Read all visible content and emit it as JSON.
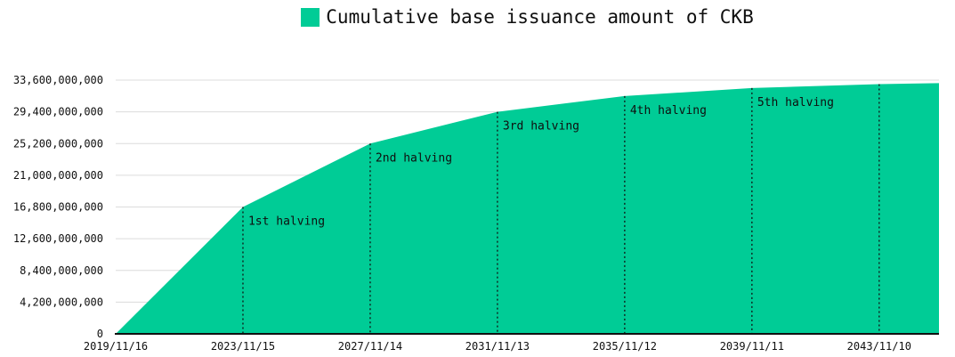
{
  "legend": {
    "label": "Cumulative base issuance amount of CKB",
    "swatch_color": "#00cc96"
  },
  "chart_data": {
    "type": "area",
    "title": "Cumulative base issuance amount of CKB",
    "grid": true,
    "legend_position": "top-center",
    "series": [
      {
        "name": "Cumulative base issuance amount of CKB",
        "color": "#00cc96",
        "points": [
          {
            "x": 0,
            "y": 0
          },
          {
            "x": 1,
            "y": 16800000000
          },
          {
            "x": 2,
            "y": 25200000000
          },
          {
            "x": 3,
            "y": 29400000000
          },
          {
            "x": 4,
            "y": 31500000000
          },
          {
            "x": 5,
            "y": 32550000000
          },
          {
            "x": 6,
            "y": 33075000000
          },
          {
            "x": 6.47,
            "y": 33198000000
          }
        ]
      }
    ],
    "x_axis": {
      "tick_labels": [
        "2019/11/16",
        "2023/11/15",
        "2027/11/14",
        "2031/11/13",
        "2035/11/12",
        "2039/11/11",
        "2043/11/10"
      ],
      "tick_positions": [
        0,
        1,
        2,
        3,
        4,
        5,
        6
      ],
      "range": [
        0,
        6.47
      ]
    },
    "y_axis": {
      "tick_labels": [
        "0",
        "4,200,000,000",
        "8,400,000,000",
        "12,600,000,000",
        "16,800,000,000",
        "21,000,000,000",
        "25,200,000,000",
        "29,400,000,000",
        "33,600,000,000"
      ],
      "tick_values": [
        0,
        4200000000,
        8400000000,
        12600000000,
        16800000000,
        21000000000,
        25200000000,
        29400000000,
        33600000000
      ],
      "range": [
        0,
        33600000000
      ]
    },
    "annotations": [
      {
        "label": "1st halving",
        "x": 1
      },
      {
        "label": "2nd halving",
        "x": 2
      },
      {
        "label": "3rd halving",
        "x": 3
      },
      {
        "label": "4th halving",
        "x": 4
      },
      {
        "label": "5th halving",
        "x": 5
      },
      {
        "label": "",
        "x": 6
      }
    ],
    "colors": {
      "area": "#00cc96",
      "gridline": "#dcdcdc",
      "axis": "#111111",
      "annotation_line": "#111111",
      "text": "#0f0f0f"
    }
  }
}
